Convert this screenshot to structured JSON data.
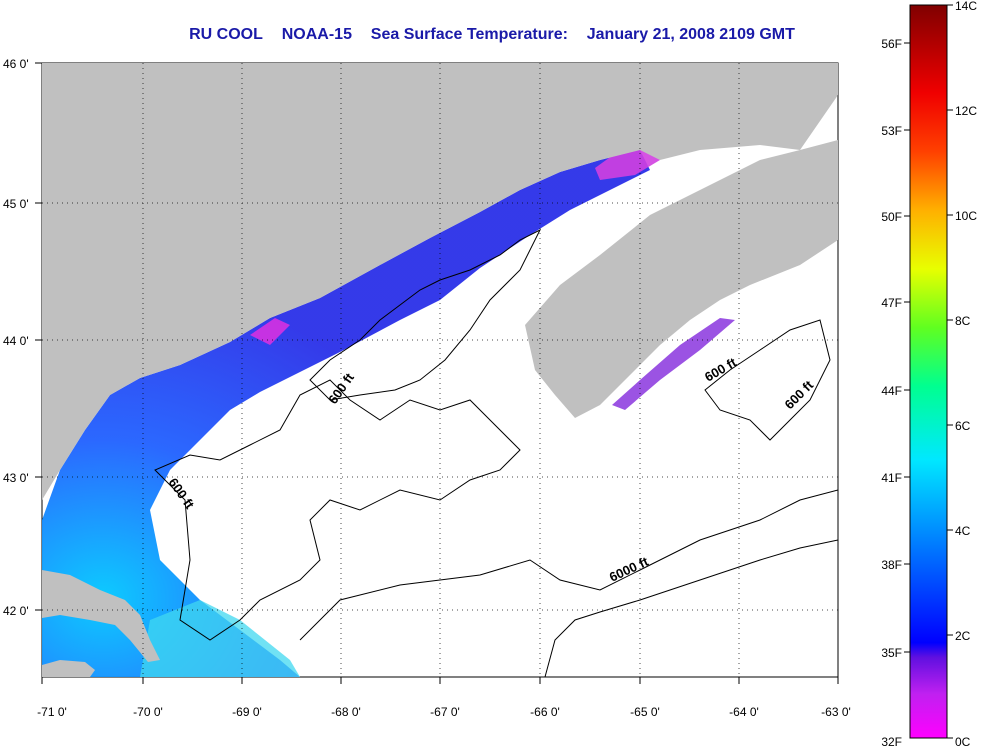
{
  "title": {
    "org": "RU COOL",
    "satellite": "NOAA-15",
    "product": "Sea Surface Temperature:",
    "date": "January 21, 2008 2109 GMT"
  },
  "map": {
    "lon_ticks": [
      "-71 0'",
      "-70 0'",
      "-69 0'",
      "-68 0'",
      "-67 0'",
      "-66 0'",
      "-65 0'",
      "-64 0'",
      "-63 0'"
    ],
    "lat_ticks": [
      "46 0'",
      "45 0'",
      "44 0'",
      "43 0'",
      "42 0'"
    ],
    "land_color": "#c0c0c0",
    "nodata_color": "#ffffff",
    "contour_labels": [
      "600 ft",
      "600 ft",
      "600 ft",
      "600 ft",
      "6000 ft"
    ]
  },
  "colorbar": {
    "celsius": [
      "14C",
      "12C",
      "10C",
      "8C",
      "6C",
      "4C",
      "2C",
      "0C"
    ],
    "fahrenheit": [
      "56F",
      "53F",
      "50F",
      "47F",
      "44F",
      "41F",
      "38F",
      "35F",
      "32F"
    ],
    "gradient": [
      "#ff00ff",
      "#9000e0",
      "#0000ff",
      "#0080ff",
      "#00ffff",
      "#00ff80",
      "#80ff00",
      "#ffff00",
      "#ff8000",
      "#ff0000",
      "#c00000",
      "#800000"
    ]
  }
}
